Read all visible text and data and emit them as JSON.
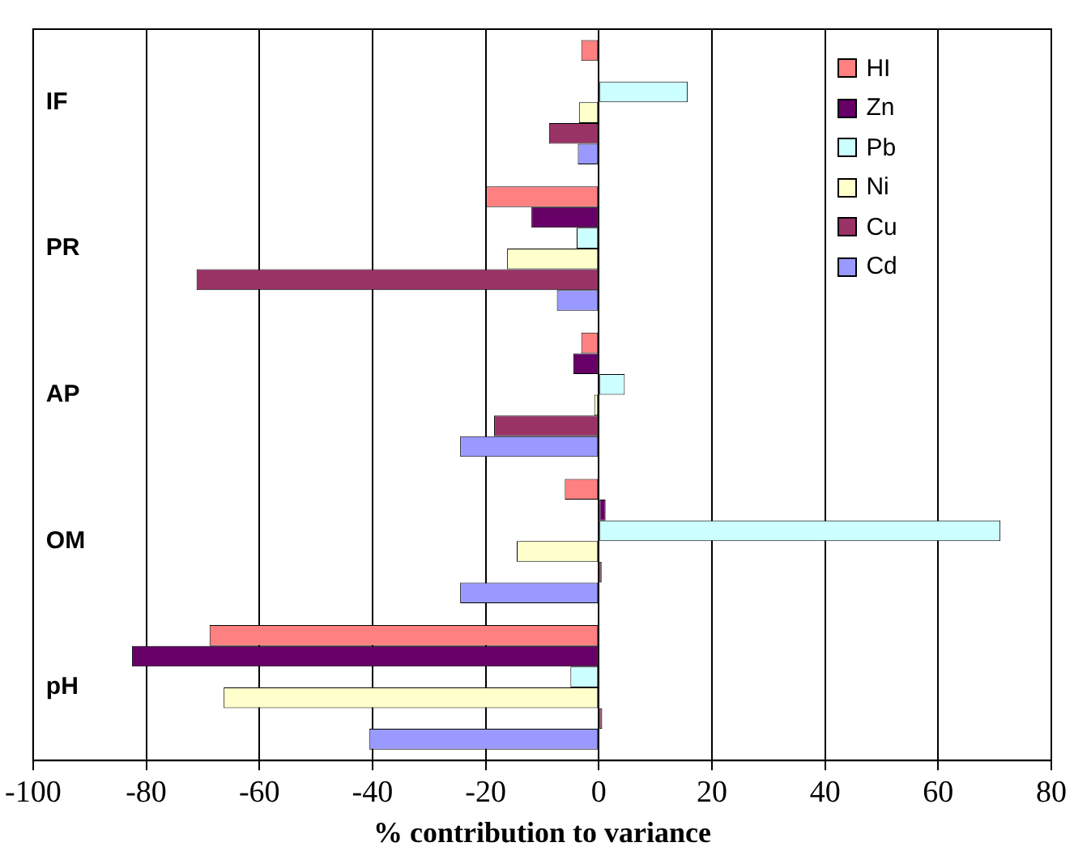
{
  "chart_data": {
    "type": "bar",
    "orientation": "horizontal",
    "xlabel": "% contribution to variance",
    "categories": [
      "IF",
      "PR",
      "AP",
      "OM",
      "pH"
    ],
    "series": [
      {
        "name": "HI",
        "color": "#ff8080",
        "values": [
          -3.1,
          -19.9,
          -3.1,
          -6,
          -68.8
        ]
      },
      {
        "name": "Zn",
        "color": "#660066",
        "values": [
          0,
          -11.9,
          -4.5,
          1.2,
          -82.5
        ]
      },
      {
        "name": "Pb",
        "color": "#ccffff",
        "values": [
          15.7,
          -3.9,
          4.6,
          71,
          -5
        ]
      },
      {
        "name": "Ni",
        "color": "#ffffcc",
        "values": [
          -3.5,
          -16.2,
          -0.8,
          -14.5,
          -66.3
        ]
      },
      {
        "name": "Cu",
        "color": "#993366",
        "values": [
          -8.8,
          -71.1,
          -18.5,
          0.5,
          0.6
        ]
      },
      {
        "name": "Cd",
        "color": "#9999ff",
        "values": [
          -3.7,
          -7.4,
          -24.5,
          -24.5,
          -40.6
        ]
      }
    ],
    "xlim": [
      -100,
      80
    ],
    "xticks": [
      -100,
      -80,
      -60,
      -40,
      -20,
      0,
      20,
      40,
      60,
      80
    ],
    "grid": "x",
    "legend": "top right"
  }
}
